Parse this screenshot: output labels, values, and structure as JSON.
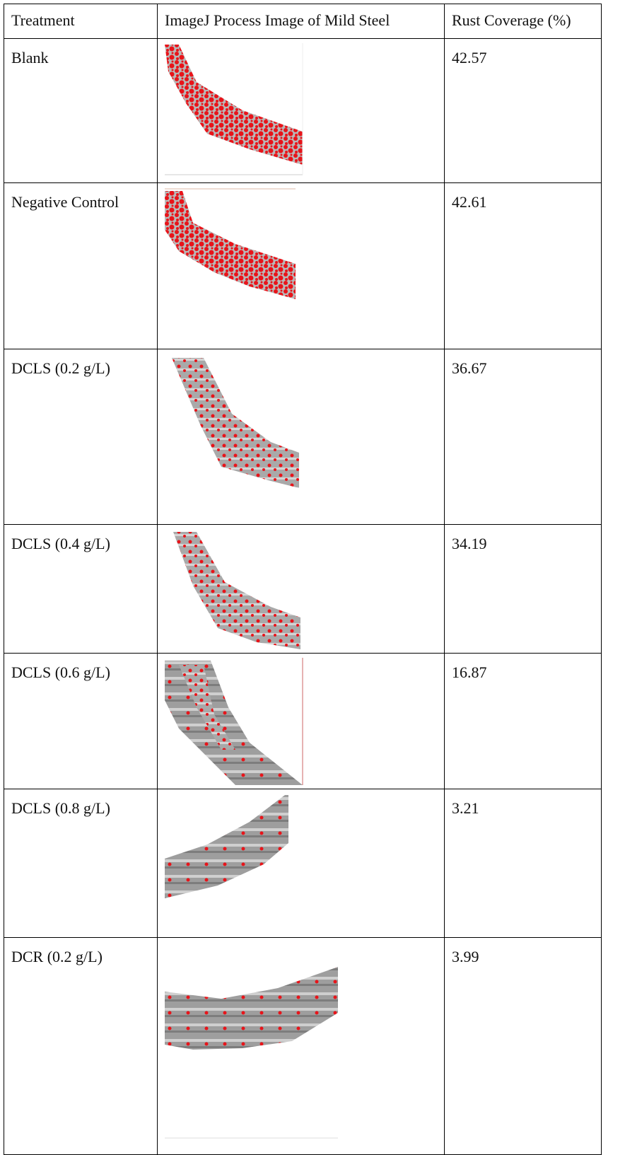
{
  "table": {
    "header": [
      "Treatment",
      "ImageJ Process Image of Mild Steel",
      "Rust Coverage (%)"
    ],
    "rows": [
      [
        "Blank",
        "42.57"
      ],
      [
        "Negative Control",
        "42.61"
      ],
      [
        "DCLS (0.2 g/L)",
        "36.67"
      ],
      [
        "DCLS (0.4 g/L)",
        "34.19"
      ],
      [
        "DCLS (0.6 g/L)",
        "16.87"
      ],
      [
        "DCLS (0.8 g/L)",
        "3.21"
      ],
      [
        "DCR (0.2 g/L)",
        "3.99"
      ]
    ]
  }
}
